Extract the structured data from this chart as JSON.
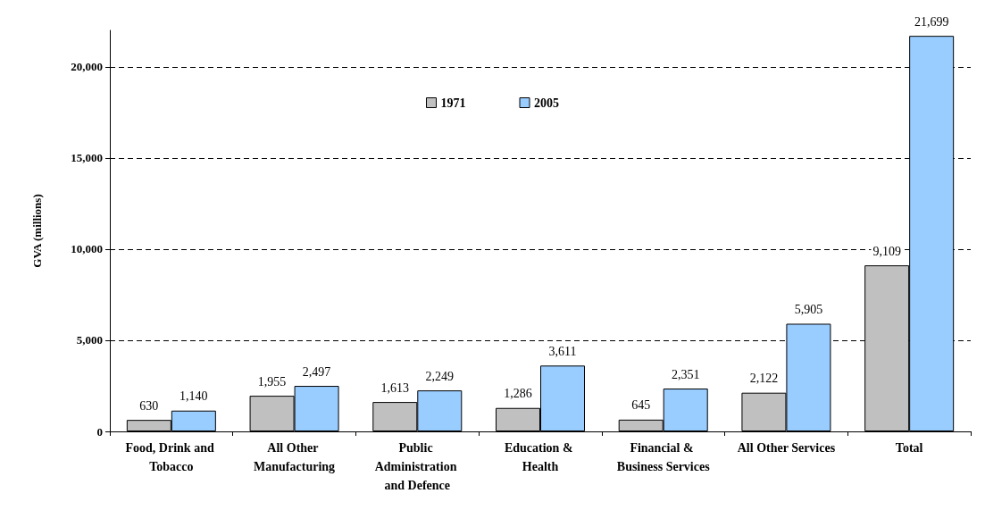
{
  "chart_data": {
    "type": "bar",
    "ylabel": "GVA (millions)",
    "categories": [
      "Food, Drink and Tobacco",
      "All Other Manufacturing",
      "Public Administration and Defence",
      "Education & Health",
      "Financial & Business Services",
      "All Other Services",
      "Total"
    ],
    "series": [
      {
        "name": "1971",
        "color": "#c0c0c0",
        "values": [
          630,
          1955,
          1613,
          1286,
          645,
          2122,
          9109
        ],
        "value_labels": [
          "630",
          "1,955",
          "1,613",
          "1,286",
          "645",
          "2,122",
          "9,109"
        ]
      },
      {
        "name": "2005",
        "color": "#99ccff",
        "values": [
          1140,
          2497,
          2249,
          3611,
          2351,
          5905,
          21699
        ],
        "value_labels": [
          "1,140",
          "2,497",
          "2,249",
          "3,611",
          "2,351",
          "5,905",
          "21,699"
        ]
      }
    ],
    "ylim": [
      0,
      22000
    ],
    "yticks": [
      {
        "value": 0,
        "label": "0"
      },
      {
        "value": 5000,
        "label": "5,000"
      },
      {
        "value": 10000,
        "label": "10,000"
      },
      {
        "value": 15000,
        "label": "15,000"
      },
      {
        "value": 20000,
        "label": "20,000"
      }
    ],
    "grid": "y",
    "legend": "top"
  }
}
